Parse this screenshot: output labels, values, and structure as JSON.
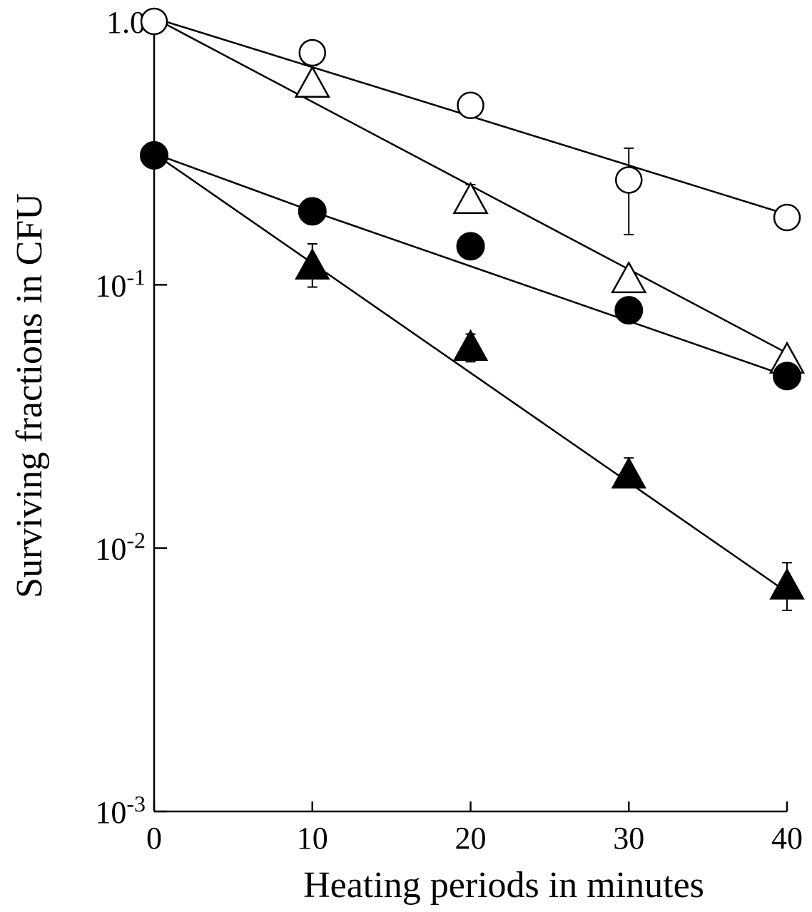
{
  "chart_data": {
    "type": "scatter",
    "xlabel": "Heating periods in minutes",
    "ylabel": "Surviving fractions in CFU",
    "x_ticks": [
      {
        "value": 0,
        "label": "0"
      },
      {
        "value": 10,
        "label": "10"
      },
      {
        "value": 20,
        "label": "20"
      },
      {
        "value": 30,
        "label": "30"
      },
      {
        "value": 40,
        "label": "40"
      }
    ],
    "y_scale": "log",
    "y_ticks": [
      {
        "value": 1.0,
        "base": "1.0",
        "exp": ""
      },
      {
        "value": 0.1,
        "base": "10",
        "exp": "-1"
      },
      {
        "value": 0.01,
        "base": "10",
        "exp": "-2"
      },
      {
        "value": 0.001,
        "base": "10",
        "exp": "-3"
      }
    ],
    "xlim": [
      0,
      40
    ],
    "ylim": [
      0.001,
      1.0
    ],
    "grid": false,
    "series": [
      {
        "marker": "open-circle",
        "x": [
          0,
          10,
          20,
          30,
          40
        ],
        "y": [
          1.0,
          0.76,
          0.48,
          0.25,
          0.18
        ],
        "err_low": [
          null,
          0.68,
          null,
          0.155,
          null
        ],
        "err_high": [
          null,
          0.82,
          null,
          0.33,
          null
        ],
        "fit": [
          [
            0,
            1.03
          ],
          [
            40,
            0.185
          ]
        ]
      },
      {
        "marker": "open-triangle",
        "x": [
          10,
          20,
          30,
          40
        ],
        "y": [
          0.58,
          0.21,
          0.105,
          0.052
        ],
        "err_low": [
          null,
          0.19,
          null,
          null
        ],
        "err_high": [
          null,
          0.24,
          null,
          null
        ],
        "fit": [
          [
            0,
            1.03
          ],
          [
            40,
            0.055
          ]
        ]
      },
      {
        "marker": "filled-circle",
        "x": [
          0,
          10,
          20,
          30,
          40
        ],
        "y": [
          0.31,
          0.19,
          0.14,
          0.08,
          0.045
        ],
        "err_low": [
          null,
          null,
          null,
          null,
          null
        ],
        "err_high": [
          null,
          null,
          null,
          null,
          null
        ],
        "fit": [
          [
            0,
            0.315
          ],
          [
            10,
            0.19
          ],
          [
            40,
            0.045
          ]
        ]
      },
      {
        "marker": "filled-triangle",
        "x": [
          10,
          20,
          30,
          40
        ],
        "y": [
          0.118,
          0.058,
          0.019,
          0.0072
        ],
        "err_low": [
          0.098,
          0.051,
          0.017,
          0.0058
        ],
        "err_high": [
          0.143,
          0.065,
          0.022,
          0.0088
        ],
        "fit": [
          [
            0,
            0.315
          ],
          [
            40,
            0.0068
          ]
        ]
      }
    ]
  }
}
